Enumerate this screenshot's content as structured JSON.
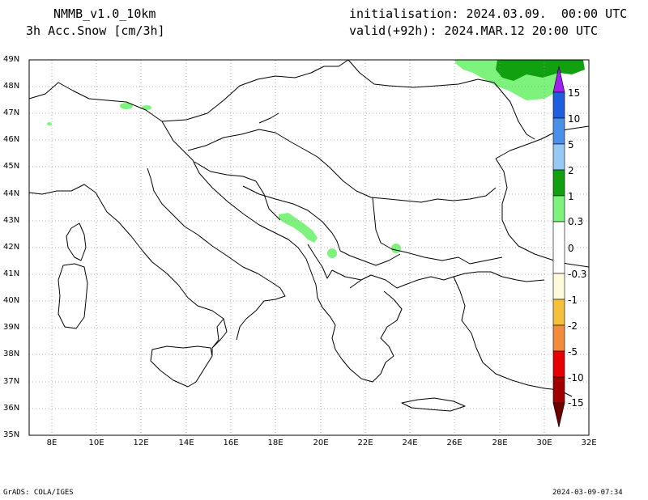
{
  "header": {
    "model": "NMMB_v1.0_10km",
    "variable": "3h Acc.Snow [cm/3h]",
    "init": "initialisation: 2024.03.09.  00:00 UTC",
    "valid": "valid(+92h): 2024.MAR.12 20:00 UTC"
  },
  "axes": {
    "lat_labels": [
      "49N",
      "48N",
      "47N",
      "46N",
      "45N",
      "44N",
      "43N",
      "42N",
      "41N",
      "40N",
      "39N",
      "38N",
      "37N",
      "36N",
      "35N"
    ],
    "lon_labels": [
      "8E",
      "10E",
      "12E",
      "14E",
      "16E",
      "18E",
      "20E",
      "22E",
      "24E",
      "26E",
      "28E",
      "30E",
      "32E"
    ]
  },
  "colorbar": {
    "labels": [
      "15",
      "10",
      "5",
      "2",
      "1",
      "0.3",
      "0",
      "-0.3",
      "-1",
      "-2",
      "-5",
      "-10",
      "-15"
    ],
    "colors": [
      "#a020f0",
      "#1e5fe0",
      "#4a90e8",
      "#9ac8f5",
      "#10a010",
      "#7df37d",
      "#ffffff",
      "#fffadc",
      "#fff08c",
      "#f5c03c",
      "#f08c3c",
      "#e60000",
      "#a00000",
      "#6e0000"
    ]
  },
  "footer": {
    "left": "GrADS: COLA/IGES",
    "right": "2024-03-09-07:34"
  }
}
